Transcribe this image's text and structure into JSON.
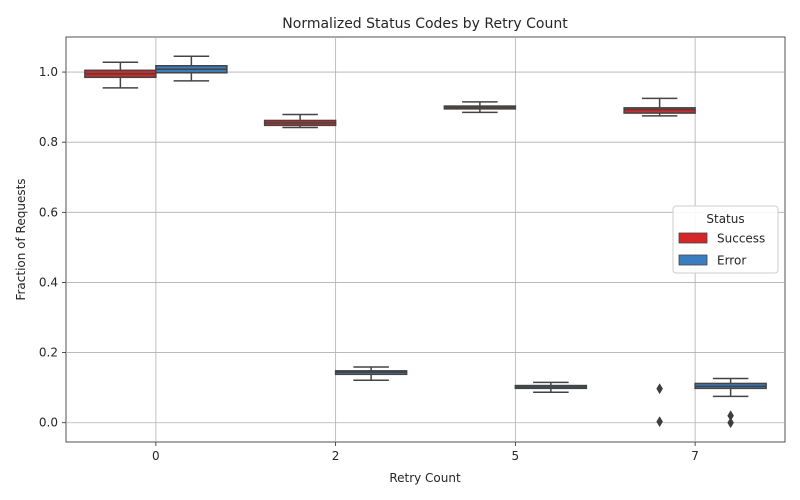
{
  "chart_data": {
    "type": "box",
    "title": "Normalized Status Codes by Retry Count",
    "xlabel": "Retry Count",
    "ylabel": "Fraction of Requests",
    "ylim": [
      -0.055,
      1.1
    ],
    "yticks": [
      "0.0",
      "0.2",
      "0.4",
      "0.6",
      "0.8",
      "1.0"
    ],
    "grid": true,
    "categories": [
      "0",
      "2",
      "5",
      "7"
    ],
    "legend": {
      "title": "Status",
      "position": "center-right"
    },
    "series": [
      {
        "name": "Success",
        "color": "#d62728",
        "boxes": [
          {
            "whislo": 0.955,
            "q1": 0.985,
            "med": 0.995,
            "q3": 1.005,
            "whishi": 1.028,
            "fliers": []
          },
          {
            "whislo": 0.842,
            "q1": 0.848,
            "med": 0.855,
            "q3": 0.862,
            "whishi": 0.879,
            "fliers": []
          },
          {
            "whislo": 0.885,
            "q1": 0.895,
            "med": 0.899,
            "q3": 0.903,
            "whishi": 0.915,
            "fliers": []
          },
          {
            "whislo": 0.875,
            "q1": 0.883,
            "med": 0.893,
            "q3": 0.898,
            "whishi": 0.925,
            "fliers": [
              0.097,
              0.003
            ]
          }
        ]
      },
      {
        "name": "Error",
        "color": "#3a7ebf",
        "boxes": [
          {
            "whislo": 0.975,
            "q1": 0.998,
            "med": 1.008,
            "q3": 1.018,
            "whishi": 1.045,
            "fliers": []
          },
          {
            "whislo": 0.121,
            "q1": 0.138,
            "med": 0.144,
            "q3": 0.148,
            "whishi": 0.159,
            "fliers": []
          },
          {
            "whislo": 0.087,
            "q1": 0.098,
            "med": 0.102,
            "q3": 0.106,
            "whishi": 0.115,
            "fliers": []
          },
          {
            "whislo": 0.075,
            "q1": 0.098,
            "med": 0.104,
            "q3": 0.112,
            "whishi": 0.126,
            "fliers": [
              0.02,
              0.0
            ]
          }
        ]
      }
    ]
  }
}
